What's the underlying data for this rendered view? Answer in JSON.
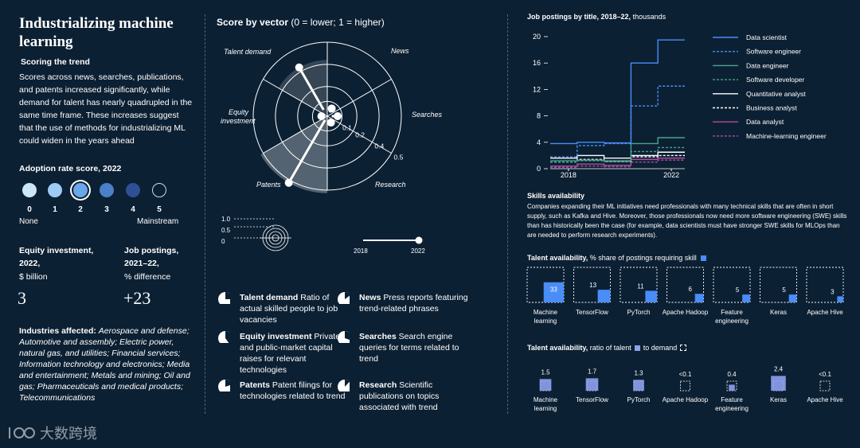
{
  "left": {
    "title": "Industrializing machine learning",
    "trend_heading": "Scoring the trend",
    "trend_text": "Scores across news, searches, publications, and patents increased significantly, while demand for talent has nearly quadrupled in the same time frame. These increases suggest that the use of methods for industrializing ML could widen in the years ahead",
    "adoption_heading": "Adoption rate score, 2022",
    "adoption_scale": [
      "0",
      "1",
      "2",
      "3",
      "4",
      "5"
    ],
    "adoption_selected": "2",
    "adoption_low": "None",
    "adoption_high": "Mainstream",
    "equity_label_1": "Equity investment,",
    "equity_label_2": "2022,",
    "equity_unit": "$ billion",
    "equity_value": "3",
    "jobs_label_1": "Job postings,",
    "jobs_label_2": "2021–22,",
    "jobs_unit": "% difference",
    "jobs_value": "+23",
    "industries_label": "Industries affected:",
    "industries_text": "Aerospace and defense; Automotive and assembly; Electric power, natural gas, and utilities; Financial services; Information technology and electronics; Media and entertainment; Metals and mining; Oil and gas; Pharmaceuticals and medical products; Telecommunications"
  },
  "middle": {
    "heading_bold": "Score by vector",
    "heading_rest": "(0 = lower; 1 = higher)",
    "ring_labels": [
      "0.1",
      "0.2",
      "0.4",
      "0.5"
    ],
    "mini_ticks": [
      "1.0",
      "0.5",
      "0"
    ],
    "year_start": "2018",
    "year_end": "2022",
    "definitions": [
      {
        "term": "Talent demand",
        "text": "Ratio of actual skilled people to job vacancies"
      },
      {
        "term": "News",
        "text": "Press reports featuring trend-related phrases"
      },
      {
        "term": "Equity investment",
        "text": "Private- and public-market capital raises for relevant technologies"
      },
      {
        "term": "Searches",
        "text": "Search engine queries for terms related to trend"
      },
      {
        "term": "Patents",
        "text": "Patent filings for technologies related to trend"
      },
      {
        "term": "Research",
        "text": "Scientific publications on topics associated with trend"
      }
    ]
  },
  "right": {
    "skills_heading": "Skills availability",
    "skills_text": "Companies expanding their ML initiatives need professionals with many technical skills that are often in short supply, such as Kafka and Hive. Moreover, those professionals now need more software engineering (SWE) skills than has historically been the case (for example, data scientists must have stronger SWE skills for MLOps than are needed to perform research experiments).",
    "share_heading_bold": "Talent availability,",
    "share_heading_rest": "% share of postings requiring skill",
    "ratio_heading_bold": "Talent availability,",
    "ratio_heading_rest": "ratio of talent",
    "ratio_heading_end": "to demand"
  },
  "watermark": "大数跨境",
  "colors": {
    "background": "#0c2033",
    "blue": "#4a8df7",
    "light_blue": "#9ecbf5",
    "green": "#4aa38c",
    "pink": "#b04ea0",
    "grey_line": "#4d6478"
  },
  "chart_data": [
    {
      "type": "radar",
      "title": "Score by vector",
      "subtitle": "(0 = lower; 1 = higher)",
      "axes": [
        "Talent demand",
        "News",
        "Searches",
        "Research",
        "Patents",
        "Equity investment"
      ],
      "rings": [
        0.1,
        0.2,
        0.4,
        0.5
      ],
      "series": [
        {
          "name": "2018",
          "values": [
            0.05,
            0.03,
            0.03,
            0.03,
            0.03,
            0.03
          ]
        },
        {
          "name": "2022",
          "values": [
            0.38,
            0.06,
            0.07,
            0.05,
            0.52,
            0.04
          ]
        }
      ]
    },
    {
      "type": "line",
      "title": "Job postings by title, 2018–22,",
      "subtitle": "thousands",
      "x": [
        2018,
        2019,
        2020,
        2021,
        2022
      ],
      "ylim": [
        0,
        20
      ],
      "yticks": [
        0,
        4,
        8,
        12,
        16,
        20
      ],
      "xticks": [
        "2018",
        "2022"
      ],
      "series": [
        {
          "name": "Data scientist",
          "style": "solid",
          "color": "#4a8df7",
          "values": [
            3.8,
            4.0,
            3.9,
            16.0,
            19.5
          ]
        },
        {
          "name": "Software engineer",
          "style": "dashed",
          "color": "#4a8df7",
          "values": [
            1.8,
            3.5,
            3.8,
            9.5,
            12.5
          ]
        },
        {
          "name": "Data engineer",
          "style": "solid",
          "color": "#4aa38c",
          "values": [
            1.2,
            1.3,
            1.2,
            3.8,
            4.7
          ]
        },
        {
          "name": "Software developer",
          "style": "dashed",
          "color": "#4aa38c",
          "values": [
            1.0,
            1.2,
            1.1,
            2.6,
            3.2
          ]
        },
        {
          "name": "Quantitative analyst",
          "style": "solid",
          "color": "#ffffff",
          "values": [
            1.6,
            2.0,
            1.6,
            2.0,
            2.5
          ]
        },
        {
          "name": "Business analyst",
          "style": "dashed",
          "color": "#ffffff",
          "values": [
            1.0,
            1.4,
            1.1,
            1.8,
            2.0
          ]
        },
        {
          "name": "Data analyst",
          "style": "solid",
          "color": "#b04ea0",
          "values": [
            0.4,
            0.7,
            0.5,
            1.4,
            1.6
          ]
        },
        {
          "name": "Machine-learning engineer",
          "style": "dashed",
          "color": "#b04ea0",
          "values": [
            0.2,
            0.4,
            0.3,
            1.0,
            1.3
          ]
        }
      ]
    },
    {
      "type": "bar",
      "title": "Talent availability, % share of postings requiring skill",
      "categories": [
        "Machine learning",
        "TensorFlow",
        "PyTorch",
        "Apache Hadoop",
        "Feature engineering",
        "Keras",
        "Apache Hive"
      ],
      "values": [
        33,
        13,
        11,
        6,
        5,
        5,
        3
      ]
    },
    {
      "type": "bar",
      "title": "Talent availability, ratio of talent to demand",
      "categories": [
        "Machine learning",
        "TensorFlow",
        "PyTorch",
        "Apache Hadoop",
        "Feature engineering",
        "Keras",
        "Apache Hive"
      ],
      "values": [
        1.5,
        1.7,
        1.3,
        0.05,
        0.4,
        2.4,
        0.05
      ],
      "labels": [
        "1.5",
        "1.7",
        "1.3",
        "<0.1",
        "0.4",
        "2.4",
        "<0.1"
      ]
    }
  ]
}
